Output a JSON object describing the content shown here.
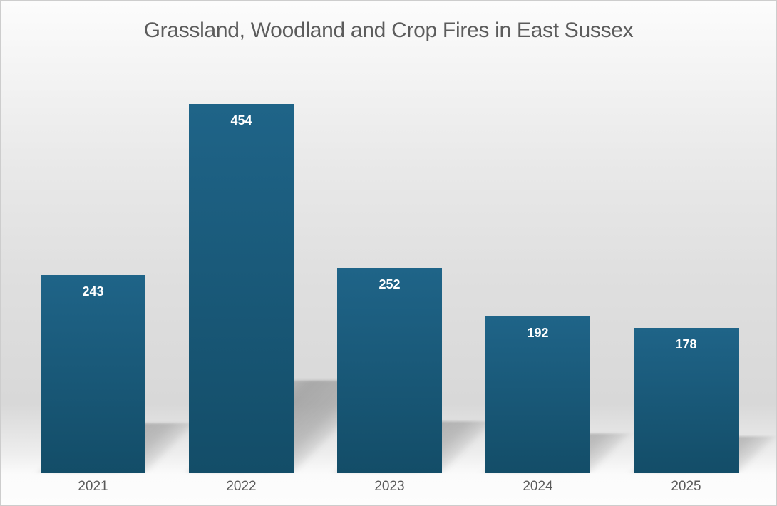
{
  "chart_data": {
    "type": "bar",
    "title": "Grassland, Woodland and Crop Fires in East Sussex",
    "categories": [
      "2021",
      "2022",
      "2023",
      "2024",
      "2025"
    ],
    "values": [
      243,
      454,
      252,
      192,
      178
    ],
    "xlabel": "",
    "ylabel": "",
    "ylim": [
      0,
      580
    ],
    "grid": false,
    "legend": false,
    "value_labels_position": "inside-top",
    "shadow_style": "perspective-lower-right",
    "colors": {
      "bar_top": "#1f6488",
      "bar_bottom": "#134d68",
      "value_label": "#ffffff",
      "category_label": "#5a5a5a",
      "title": "#5c5c5c",
      "shadow": "rgba(96,96,96,0.40)",
      "frame_border": "#cdcdcd"
    }
  }
}
